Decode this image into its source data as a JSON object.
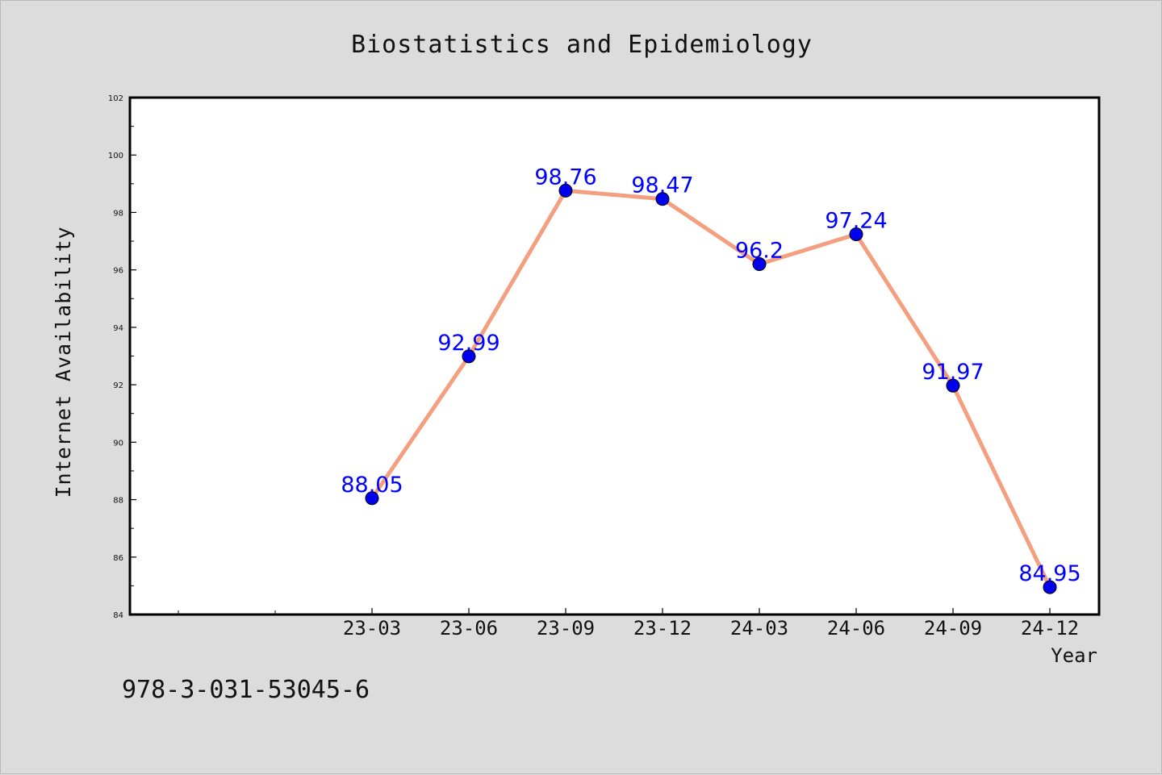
{
  "chart_data": {
    "type": "line",
    "title": "Biostatistics and Epidemiology",
    "xlabel": "Year",
    "ylabel": "Internet Availability",
    "categories": [
      "23-03",
      "23-06",
      "23-09",
      "23-12",
      "24-03",
      "24-06",
      "24-09",
      "24-12"
    ],
    "series": [
      {
        "values": [
          88.05,
          92.99,
          98.76,
          98.47,
          96.2,
          97.24,
          91.97,
          84.95
        ],
        "labels": [
          "88.05",
          "92.99",
          "98.76",
          "98.47",
          "96.2",
          "97.24",
          "91.97",
          "84.95"
        ],
        "line_color": "#f4a080",
        "marker_color": "#0000ee",
        "label_color": "#0000ff"
      }
    ],
    "ylim": [
      84,
      102
    ],
    "yticks": [
      "84",
      "86",
      "88",
      "90",
      "92",
      "94",
      "96",
      "98",
      "100",
      "102"
    ],
    "grid": false,
    "legend": "none"
  },
  "footer": {
    "identifier": "978-3-031-53045-6"
  }
}
